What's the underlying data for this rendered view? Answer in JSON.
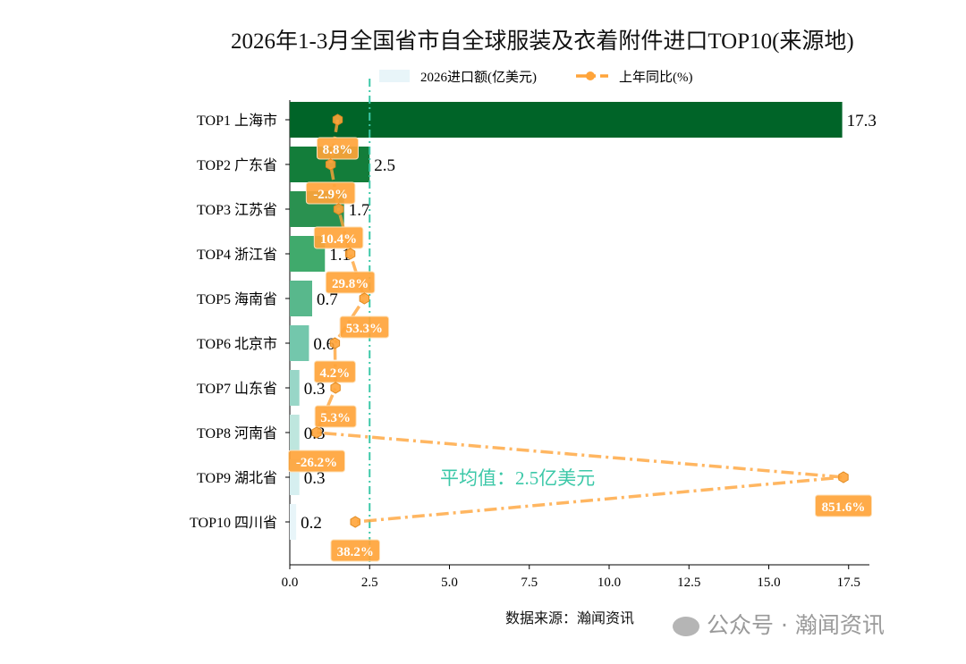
{
  "chart_data": {
    "type": "bar",
    "orientation": "horizontal",
    "title": "2026年1-3月全国省市自全球服装及衣着附件进口TOP10(来源地)",
    "categories": [
      "TOP1 上海市",
      "TOP2 广东省",
      "TOP3 江苏省",
      "TOP4 浙江省",
      "TOP5 海南省",
      "TOP6 北京市",
      "TOP7 山东省",
      "TOP8 河南省",
      "TOP9 湖北省",
      "TOP10 四川省"
    ],
    "series": [
      {
        "name": "2026进口额(亿美元)",
        "type": "bar",
        "values": [
          17.3,
          2.5,
          1.7,
          1.1,
          0.7,
          0.6,
          0.3,
          0.3,
          0.3,
          0.2
        ],
        "value_labels": [
          "17.3",
          "2.5",
          "1.7",
          "1.1",
          "0.7",
          "0.6",
          "0.3",
          "0.3",
          "0.3",
          "0.2"
        ]
      },
      {
        "name": "上年同比(%)",
        "type": "line",
        "values": [
          8.8,
          -2.9,
          10.4,
          29.8,
          53.3,
          4.2,
          5.3,
          -26.2,
          851.6,
          38.2
        ],
        "value_labels": [
          "8.8%",
          "-2.9%",
          "10.4%",
          "29.8%",
          "53.3%",
          "4.2%",
          "5.3%",
          "-26.2%",
          "851.6%",
          "38.2%"
        ]
      }
    ],
    "xlim": [
      0,
      18
    ],
    "xticks": [
      "0.0",
      "2.5",
      "5.0",
      "7.5",
      "10.0",
      "12.5",
      "15.0",
      "17.5"
    ],
    "average": {
      "value": 2.5,
      "label": "平均值：2.5亿美元"
    },
    "legend": "top-center",
    "grid": false,
    "colors": {
      "bars": [
        "#006428",
        "#137d3a",
        "#2a9150",
        "#40aa6c",
        "#58b88c",
        "#73c7ac",
        "#98d6c7",
        "#bee6de",
        "#d6eff0",
        "#e8f5f9"
      ],
      "line": "#ffa43a",
      "average": "#3cc8a8"
    }
  },
  "source": "数据来源：瀚闻资讯",
  "watermark": "公众号 · 瀚闻资讯"
}
